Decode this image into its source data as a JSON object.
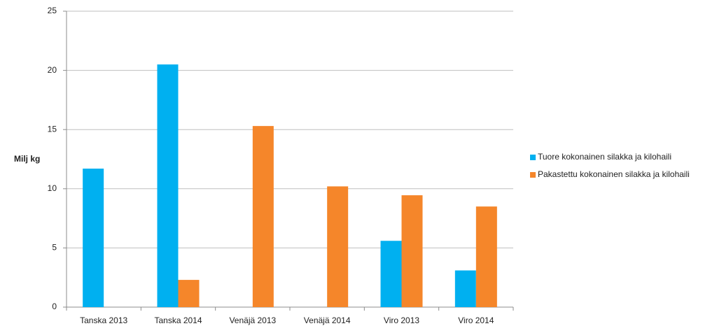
{
  "chart_data": {
    "type": "bar",
    "y_label": "Milj kg",
    "categories": [
      "Tanska 2013",
      "Tanska 2014",
      "Venäjä 2013",
      "Venäjä 2014",
      "Viro 2013",
      "Viro 2014"
    ],
    "series": [
      {
        "name": "Tuore kokonainen silakka ja kilohaili",
        "color": "#00b0f0",
        "values": [
          11.7,
          20.5,
          0,
          0,
          5.6,
          3.1
        ]
      },
      {
        "name": "Pakastettu kokonainen silakka ja kilohaili",
        "color": "#f5862a",
        "values": [
          0,
          2.3,
          15.3,
          10.2,
          9.45,
          8.5
        ]
      }
    ],
    "ylim": [
      0,
      25
    ],
    "yticks": [
      0,
      5,
      10,
      15,
      20,
      25
    ],
    "grid": true,
    "legend": "right"
  }
}
